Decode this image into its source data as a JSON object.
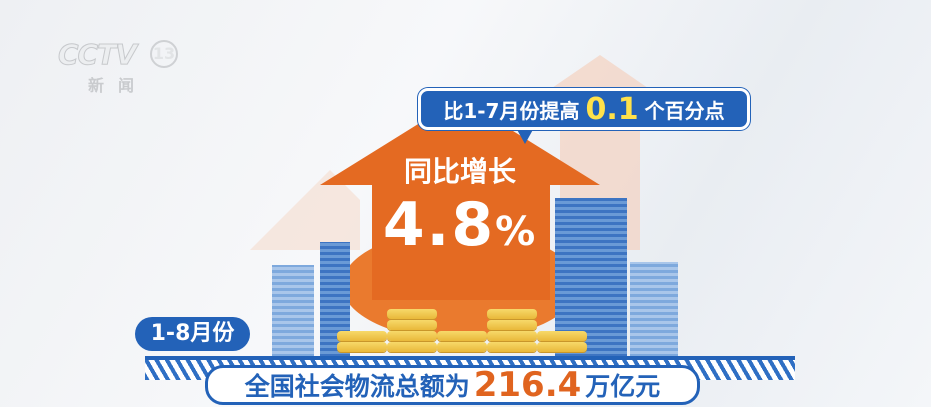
{
  "logo": {
    "brand": "CCTV",
    "channel": "13",
    "subtitle": "新闻"
  },
  "callout": {
    "prefix": "比1-7月份提高",
    "value": "0.1",
    "suffix": "个百分点"
  },
  "growth": {
    "label": "同比增长",
    "value": "4.8",
    "unit": "%"
  },
  "period": "1-8月份",
  "total": {
    "prefix": "全国社会物流总额为",
    "value": "216.4",
    "unit": "万亿元"
  },
  "colors": {
    "primary_blue": "#2362b8",
    "orange": "#e0641f",
    "highlight_yellow": "#ffe14a"
  }
}
